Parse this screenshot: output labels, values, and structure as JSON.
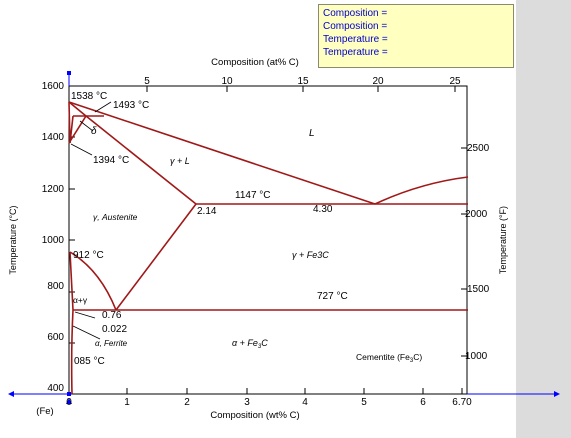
{
  "readout": {
    "lines": [
      "Composition =",
      "Composition =",
      "Temperature =",
      "Temperature ="
    ]
  },
  "axes": {
    "bottom": {
      "label": "Composition (wt% C)",
      "ticks": [
        "0",
        "1",
        "2",
        "3",
        "4",
        "5",
        "6",
        "6.70"
      ],
      "end_label": "(Fe)"
    },
    "top": {
      "label": "Composition (at% C)",
      "ticks": [
        "5",
        "10",
        "15",
        "20",
        "25"
      ]
    },
    "left": {
      "label": "Temperature (°C)",
      "ticks": [
        "400",
        "600",
        "800",
        "1000",
        "1200",
        "1400",
        "1600"
      ]
    },
    "right": {
      "label": "Temperature (°F)",
      "ticks": [
        "1000",
        "1500",
        "2000",
        "2500"
      ]
    }
  },
  "annotations": {
    "t1538": "1538 °C",
    "t1493": "1493 °C",
    "t1394": "1394 °C",
    "t1147": "1147 °C",
    "c214": "2.14",
    "c430": "4.30",
    "t912": "912 °C",
    "t727": "727 °C",
    "c076": "0.76",
    "c0022": "0.022",
    "t1085": "085 °C"
  },
  "phases": {
    "delta": "δ",
    "liquid": "L",
    "gamma_liquid": "γ + L",
    "austenite": "γ, Austenite",
    "gamma_fe3c": "γ + Fe3C",
    "alpha_gamma": "α+γ",
    "ferrite": "α, Ferrite",
    "alpha_fe3c": "α + Fe",
    "alpha_fe3c_sub": "3",
    "alpha_fe3c_end": "C",
    "cementite": "Cementite (Fe",
    "cementite_sub": "3",
    "cementite_end": "C)"
  },
  "colors": {
    "phase_line": "#a01818",
    "axis": "#000000",
    "cursor_marker": "#0000ff",
    "readout_bg": "#ffffc0",
    "readout_text": "#0000d0"
  }
}
